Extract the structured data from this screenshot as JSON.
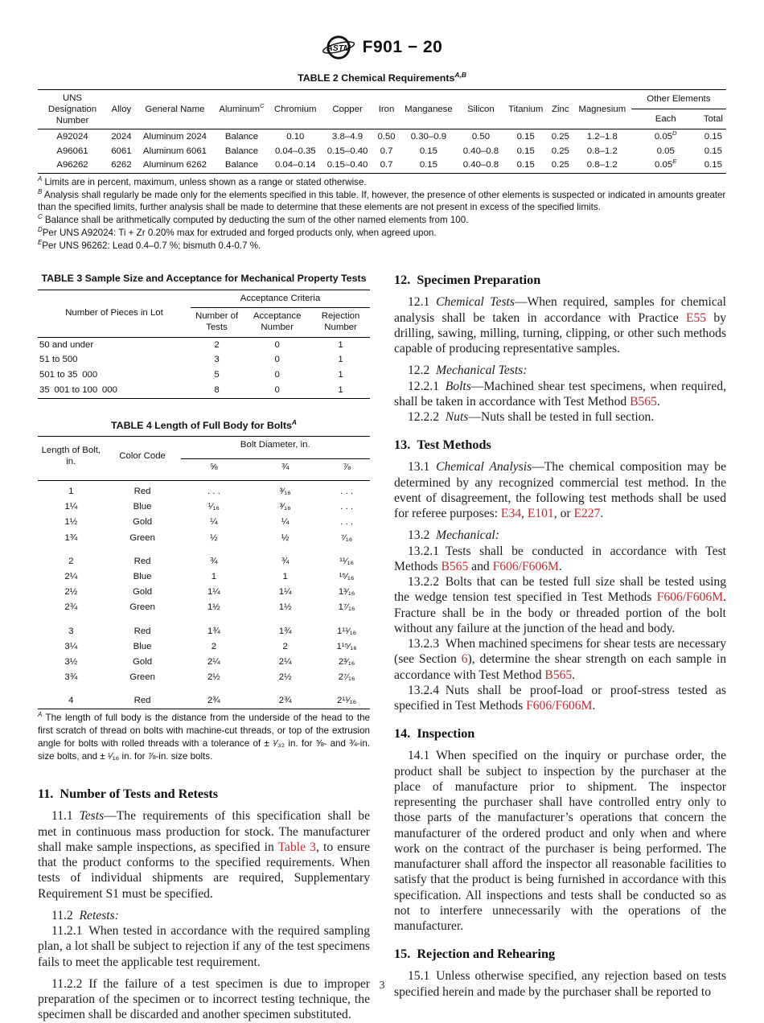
{
  "colors": {
    "link_red": "#bf2b32",
    "text": "#1c1c1c"
  },
  "page_number": "3",
  "header": {
    "doc_code": "F901 − 20",
    "logo": "ASTM"
  },
  "table2": {
    "title": "TABLE 2 Chemical Requirements^A,B^",
    "headers": [
      "UNS Designation Number",
      "Alloy",
      "General Name",
      "Aluminum^C^",
      "Chromium",
      "Copper",
      "Iron",
      "Manganese",
      "Silicon",
      "Titanium",
      "Zinc",
      "Magnesium"
    ],
    "other_elements": "Other Elements",
    "sub": [
      "Each",
      "Total"
    ],
    "rows": [
      [
        "A92024",
        "2024",
        "Aluminum 2024",
        "Balance",
        "0.10",
        "3.8–4.9",
        "0.50",
        "0.30–0.9",
        "0.50",
        "0.15",
        "0.25",
        "1.2–1.8",
        "0.05^D^",
        "0.15"
      ],
      [
        "A96061",
        "6061",
        "Aluminum 6061",
        "Balance",
        "0.04–0.35",
        "0.15–0.40",
        "0.7",
        "0.15",
        "0.40–0.8",
        "0.15",
        "0.25",
        "0.8–1.2",
        "0.05",
        "0.15"
      ],
      [
        "A96262",
        "6262",
        "Aluminum 6262",
        "Balance",
        "0.04–0.14",
        "0.15–0.40",
        "0.7",
        "0.15",
        "0.40–0.8",
        "0.15",
        "0.25",
        "0.8–1.2",
        "0.05^E^",
        "0.15"
      ]
    ],
    "footnotes": [
      "^A^ Limits are in percent, maximum, unless shown as a range or stated otherwise.",
      "^B^ Analysis shall regularly be made only for the elements specified in this table. If, however, the presence of other elements is suspected or indicated in amounts greater than the specified limits, further analysis shall be made to determine that these elements are not present in excess of the specified limits.",
      "^C^ Balance shall be arithmetically computed by deducting the sum of the other named elements from 100.",
      "^D^Per UNS A92024: Ti + Zr 0.20% max for extruded and forged products only, when agreed upon.",
      "^E^Per UNS 96262: Lead 0.4–0.7 %; bismuth 0.4-0.7 %."
    ]
  },
  "table3": {
    "title": "TABLE 3 Sample Size and Acceptance for Mechanical Property Tests",
    "col0": "Number of Pieces in Lot",
    "span": "Acceptance Criteria",
    "sub": [
      "Number of Tests",
      "Acceptance Number",
      "Rejection Number"
    ],
    "rows": [
      [
        "50 and under",
        "2",
        "0",
        "1"
      ],
      [
        "51 to 500",
        "3",
        "0",
        "1"
      ],
      [
        "501 to 35 000",
        "5",
        "0",
        "1"
      ],
      [
        "35 001 to 100 000",
        "8",
        "0",
        "1"
      ]
    ]
  },
  "table4": {
    "title": "TABLE 4 Length of Full Body for Bolts^A^",
    "col0": "Length of Bolt, in.",
    "col1": "Color Code",
    "span": "Bolt Diameter, in.",
    "sub": [
      "⅝",
      "¾",
      "⅞"
    ],
    "rows": [
      [
        "1",
        "Red",
        ". . .",
        "³⁄₁₆",
        ". . ."
      ],
      [
        "1¼",
        "Blue",
        "¹⁄₁₆",
        "³⁄₁₆",
        ". . ."
      ],
      [
        "1½",
        "Gold",
        "¼",
        "¼",
        ". . ."
      ],
      [
        "1¾",
        "Green",
        "½",
        "½",
        "⁷⁄₁₆"
      ],
      [
        "",
        "",
        "",
        "",
        ""
      ],
      [
        "2",
        "Red",
        "¾",
        "¾",
        "¹¹⁄₁₆"
      ],
      [
        "2¼",
        "Blue",
        "1",
        "1",
        "¹⁵⁄₁₆"
      ],
      [
        "2½",
        "Gold",
        "1¼",
        "1¼",
        "1³⁄₁₆"
      ],
      [
        "2¾",
        "Green",
        "1½",
        "1½",
        "1⁷⁄₁₆"
      ],
      [
        "",
        "",
        "",
        "",
        ""
      ],
      [
        "3",
        "Red",
        "1¾",
        "1¾",
        "1¹¹⁄₁₆"
      ],
      [
        "3¼",
        "Blue",
        "2",
        "2",
        "1¹⁵⁄₁₆"
      ],
      [
        "3½",
        "Gold",
        "2¼",
        "2¼",
        "2³⁄₁₆"
      ],
      [
        "3¾",
        "Green",
        "2½",
        "2½",
        "2⁷⁄₁₆"
      ],
      [
        "",
        "",
        "",
        "",
        ""
      ],
      [
        "4",
        "Red",
        "2¾",
        "2¾",
        "2¹¹⁄₁₆"
      ]
    ],
    "footnotes": [
      "^A^ The length of full body is the distance from the underside of the head to the first scratch of thread on bolts with machine-cut threads, or top of the extrusion angle for bolts with rolled threads with a tolerance of ± ¹⁄₃₂ in. for ⅝- and ¾-in. size bolts, and ± ¹⁄₁₆ in. for ⅞-in. size bolts."
    ]
  },
  "sections": {
    "s11": {
      "heading": "11. Number of Tests and Retests",
      "p1": [
        {
          "t": "11.1 "
        },
        {
          "t": "Tests",
          "i": true
        },
        {
          "t": "—The requirements of this specification shall be met in continuous mass production for stock. The manufacturer shall make sample inspections, as specified in "
        },
        {
          "t": "Table 3",
          "link": true
        },
        {
          "t": ", to ensure that the product conforms to the specified requirements. When tests of individual shipments are required, Supplementary Requirement S1 must be specified."
        }
      ],
      "p2": [
        {
          "t": "11.2 "
        },
        {
          "t": "Retests:",
          "i": true
        }
      ],
      "p3": [
        {
          "t": "11.2.1 When tested in accordance with the required sampling plan, a lot shall be subject to rejection if any of the test specimens fails to meet the applicable test requirement."
        }
      ],
      "p4": [
        {
          "t": "11.2.2 If the failure of a test specimen is due to improper preparation of the specimen or to incorrect testing technique, the specimen shall be discarded and another specimen substituted."
        }
      ]
    },
    "s12": {
      "heading": "12. Specimen Preparation",
      "p1": [
        {
          "t": "12.1 "
        },
        {
          "t": "Chemical Tests",
          "i": true
        },
        {
          "t": "—When required, samples for chemical analysis shall be taken in accordance with Practice "
        },
        {
          "t": "E55",
          "link": true
        },
        {
          "t": " by drilling, sawing, milling, turning, clipping, or other such methods capable of producing representative samples."
        }
      ],
      "p2": [
        {
          "t": "12.2 "
        },
        {
          "t": "Mechanical Tests:",
          "i": true
        }
      ],
      "p3": [
        {
          "t": "12.2.1 "
        },
        {
          "t": "Bolts",
          "i": true
        },
        {
          "t": "—Machined shear test specimens, when required, shall be taken in accordance with Test Method "
        },
        {
          "t": "B565",
          "link": true
        },
        {
          "t": "."
        }
      ],
      "p4": [
        {
          "t": "12.2.2 "
        },
        {
          "t": "Nuts",
          "i": true
        },
        {
          "t": "—Nuts shall be tested in full section."
        }
      ]
    },
    "s13": {
      "heading": "13. Test Methods",
      "p1": [
        {
          "t": "13.1 "
        },
        {
          "t": "Chemical Analysis",
          "i": true
        },
        {
          "t": "—The chemical composition may be determined by any recognized commercial test method. In the event of disagreement, the following test methods shall be used for referee purposes: "
        },
        {
          "t": "E34",
          "link": true
        },
        {
          "t": ", "
        },
        {
          "t": "E101",
          "link": true
        },
        {
          "t": ", or "
        },
        {
          "t": "E227",
          "link": true
        },
        {
          "t": "."
        }
      ],
      "p2": [
        {
          "t": "13.2 "
        },
        {
          "t": "Mechanical:",
          "i": true
        }
      ],
      "p3": [
        {
          "t": "13.2.1 Tests shall be conducted in accordance with Test Methods "
        },
        {
          "t": "B565",
          "link": true
        },
        {
          "t": " and "
        },
        {
          "t": "F606/F606M",
          "link": true
        },
        {
          "t": "."
        }
      ],
      "p4": [
        {
          "t": "13.2.2 Bolts that can be tested full size shall be tested using the wedge tension test specified in Test Methods "
        },
        {
          "t": "F606/F606M",
          "link": true
        },
        {
          "t": ". Fracture shall be in the body or threaded portion of the bolt without any failure at the junction of the head and body."
        }
      ],
      "p5": [
        {
          "t": "13.2.3 When machined specimens for shear tests are necessary (see Section "
        },
        {
          "t": "6",
          "link": true
        },
        {
          "t": "), determine the shear strength on each sample in accordance with Test Method "
        },
        {
          "t": "B565",
          "link": true
        },
        {
          "t": "."
        }
      ],
      "p6": [
        {
          "t": "13.2.4 Nuts shall be proof-load or proof-stress tested as specified in Test Methods "
        },
        {
          "t": "F606/F606M",
          "link": true
        },
        {
          "t": "."
        }
      ]
    },
    "s14": {
      "heading": "14. Inspection",
      "p1": [
        {
          "t": "14.1 When specified on the inquiry or purchase order, the product shall be subject to inspection by the purchaser at the place of manufacture prior to shipment. The inspector representing the purchaser shall have controlled entry only to those parts of the manufacturer’s operations that concern the manufacturer of the ordered product and only when and where work on the contract of the purchaser is being performed. The manufacturer shall afford the inspector all reasonable facilities to satisfy that the product is being furnished in accordance with this specification. All inspections and tests shall be conducted so as not to interfere unnecessarily with the operations of the manufacturer."
        }
      ]
    },
    "s15": {
      "heading": "15. Rejection and Rehearing",
      "p1": [
        {
          "t": "15.1 Unless otherwise specified, any rejection based on tests specified herein and made by the purchaser shall be reported to"
        }
      ]
    }
  }
}
